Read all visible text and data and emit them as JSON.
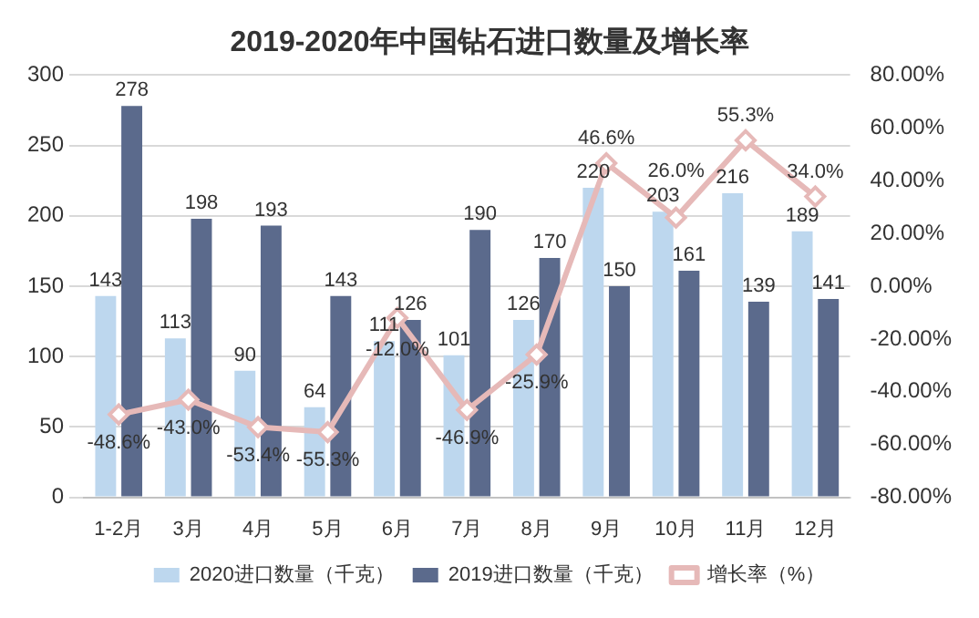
{
  "chart_data": {
    "type": "bar",
    "title": "2019-2020年中国钻石进口数量及增长率",
    "categories": [
      "1-2月",
      "3月",
      "4月",
      "5月",
      "6月",
      "7月",
      "8月",
      "9月",
      "10月",
      "11月",
      "12月"
    ],
    "series": [
      {
        "name": "2020进口数量（千克）",
        "color": "#bdd7ee",
        "values": [
          143,
          113,
          90,
          64,
          111,
          101,
          126,
          220,
          203,
          216,
          189
        ],
        "value_labels": [
          "143",
          "113",
          "90",
          "64",
          "111",
          "101",
          "126",
          "220",
          "203",
          "216",
          "189"
        ]
      },
      {
        "name": "2019进口数量（千克）",
        "color": "#5b6a8c",
        "values": [
          278,
          198,
          193,
          143,
          126,
          190,
          170,
          150,
          161,
          139,
          141
        ],
        "value_labels": [
          "278",
          "198",
          "193",
          "143",
          "126",
          "190",
          "170",
          "150",
          "161",
          "139",
          "141"
        ]
      },
      {
        "name": "增长率（%）",
        "type": "line",
        "axis": "y2",
        "color": "#e6b9b8",
        "marker": "diamond",
        "values": [
          -48.6,
          -43.0,
          -53.4,
          -55.3,
          -12.0,
          -46.9,
          -25.9,
          46.6,
          26.0,
          55.3,
          34.0
        ],
        "value_labels": [
          "-48.6%",
          "-43.0%",
          "-53.4%",
          "-55.3%",
          "-12.0%",
          "-46.9%",
          "-25.9%",
          "46.6%",
          "26.0%",
          "55.3%",
          "34.0%"
        ]
      }
    ],
    "ylim": [
      0,
      300
    ],
    "yticks": [
      0,
      50,
      100,
      150,
      200,
      250,
      300
    ],
    "y2lim": [
      -80,
      80
    ],
    "y2ticks": [
      {
        "value": -80,
        "label": "-80.00%"
      },
      {
        "value": -60,
        "label": "-60.00%"
      },
      {
        "value": -40,
        "label": "-40.00%"
      },
      {
        "value": -20,
        "label": "-20.00%"
      },
      {
        "value": 0,
        "label": "0.00%"
      },
      {
        "value": 20,
        "label": "20.00%"
      },
      {
        "value": 40,
        "label": "40.00%"
      },
      {
        "value": 60,
        "label": "60.00%"
      },
      {
        "value": 80,
        "label": "80.00%"
      }
    ],
    "grid": "y",
    "legend": "bottom"
  }
}
